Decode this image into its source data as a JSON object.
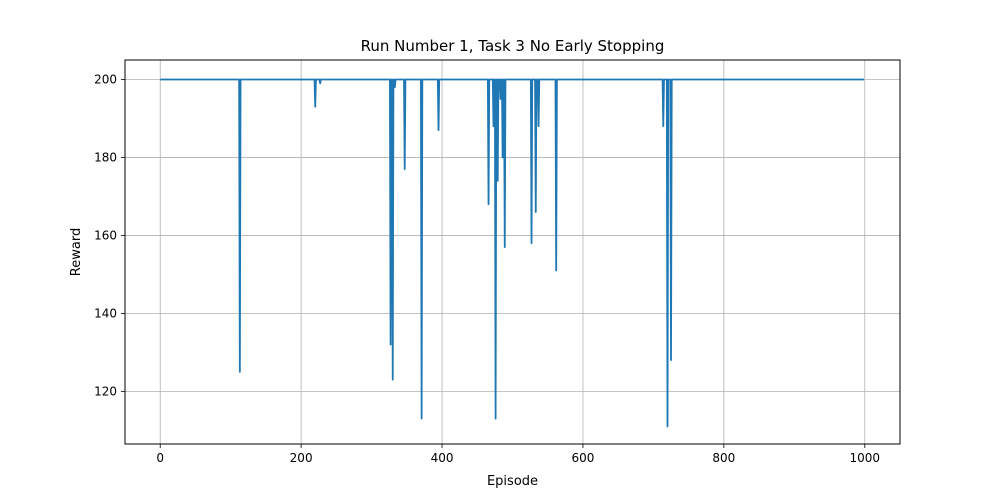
{
  "chart_data": {
    "type": "line",
    "title": "Run Number 1, Task 3 No Early Stopping",
    "xlabel": "Episode",
    "ylabel": "Reward",
    "xlim": [
      -50,
      1050
    ],
    "ylim": [
      106.5,
      205
    ],
    "xticks": [
      0,
      200,
      400,
      600,
      800,
      1000
    ],
    "yticks": [
      120,
      140,
      160,
      180,
      200
    ],
    "grid": true,
    "series": [
      {
        "color": "#1f77b4",
        "points": [
          [
            0,
            200
          ],
          [
            112,
            200
          ],
          [
            113,
            125
          ],
          [
            114,
            200
          ],
          [
            219,
            200
          ],
          [
            220,
            193
          ],
          [
            221,
            200
          ],
          [
            226,
            200
          ],
          [
            227,
            199
          ],
          [
            228,
            200
          ],
          [
            326,
            200
          ],
          [
            327,
            132
          ],
          [
            328,
            200
          ],
          [
            329,
            200
          ],
          [
            330,
            123
          ],
          [
            331,
            200
          ],
          [
            332,
            200
          ],
          [
            333,
            198
          ],
          [
            334,
            200
          ],
          [
            346,
            200
          ],
          [
            347,
            177
          ],
          [
            348,
            200
          ],
          [
            370,
            200
          ],
          [
            371,
            113
          ],
          [
            372,
            200
          ],
          [
            394,
            200
          ],
          [
            395,
            187
          ],
          [
            396,
            200
          ],
          [
            465,
            200
          ],
          [
            466,
            168
          ],
          [
            467,
            200
          ],
          [
            472,
            200
          ],
          [
            473,
            188
          ],
          [
            474,
            200
          ],
          [
            475,
            200
          ],
          [
            476,
            113
          ],
          [
            477,
            200
          ],
          [
            478,
            200
          ],
          [
            479,
            174
          ],
          [
            480,
            200
          ],
          [
            482,
            200
          ],
          [
            483,
            195
          ],
          [
            484,
            200
          ],
          [
            485,
            200
          ],
          [
            486,
            180
          ],
          [
            487,
            200
          ],
          [
            488,
            200
          ],
          [
            489,
            157
          ],
          [
            490,
            200
          ],
          [
            526,
            200
          ],
          [
            527,
            158
          ],
          [
            528,
            200
          ],
          [
            532,
            200
          ],
          [
            533,
            166
          ],
          [
            534,
            200
          ],
          [
            536,
            200
          ],
          [
            537,
            188
          ],
          [
            538,
            200
          ],
          [
            561,
            200
          ],
          [
            562,
            151
          ],
          [
            563,
            200
          ],
          [
            713,
            200
          ],
          [
            714,
            188
          ],
          [
            715,
            200
          ],
          [
            719,
            200
          ],
          [
            720,
            111
          ],
          [
            721,
            200
          ],
          [
            724,
            200
          ],
          [
            725,
            128
          ],
          [
            726,
            200
          ],
          [
            999,
            200
          ]
        ]
      }
    ]
  }
}
